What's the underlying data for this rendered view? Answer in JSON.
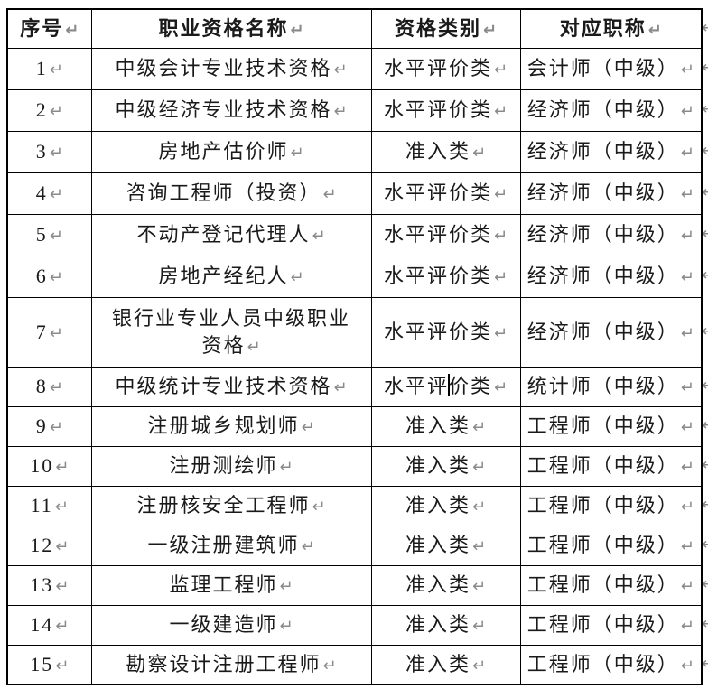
{
  "document": {
    "background_color": "#ffffff",
    "text_color": "#1a1a1a",
    "border_color": "#000000",
    "formatting_mark_color": "#8a8a8a",
    "end_of_cell_mark": "↵",
    "end_of_row_mark": "↵"
  },
  "table": {
    "headers": [
      {
        "key": "no",
        "label": "序号"
      },
      {
        "key": "name",
        "label": "职业资格名称"
      },
      {
        "key": "category",
        "label": "资格类别"
      },
      {
        "key": "title",
        "label": "对应职称"
      }
    ],
    "rows": [
      {
        "no": "1",
        "name": "中级会计专业技术资格",
        "category": "水平评价类",
        "title": "会计师（中级）"
      },
      {
        "no": "2",
        "name": "中级经济专业技术资格",
        "category": "水平评价类",
        "title": "经济师（中级）"
      },
      {
        "no": "3",
        "name": "房地产估价师",
        "category": "准入类",
        "title": "经济师（中级）"
      },
      {
        "no": "4",
        "name": "咨询工程师（投资）",
        "category": "水平评价类",
        "title": "经济师（中级）"
      },
      {
        "no": "5",
        "name": "不动产登记代理人",
        "category": "水平评价类",
        "title": "经济师（中级）"
      },
      {
        "no": "6",
        "name": "房地产经纪人",
        "category": "水平评价类",
        "title": "经济师（中级）"
      },
      {
        "no": "7",
        "name": "银行业专业人员中级职业资格",
        "category": "水平评价类",
        "title": "经济师（中级）",
        "name_wrap_after": 11
      },
      {
        "no": "8",
        "name": "中级统计专业技术资格",
        "category": "水平评价类",
        "title": "统计师（中级）"
      },
      {
        "no": "9",
        "name": "注册城乡规划师",
        "category": "准入类",
        "title": "工程师（中级）"
      },
      {
        "no": "10",
        "name": "注册测绘师",
        "category": "准入类",
        "title": "工程师（中级）"
      },
      {
        "no": "11",
        "name": "注册核安全工程师",
        "category": "准入类",
        "title": "工程师（中级）"
      },
      {
        "no": "12",
        "name": "一级注册建筑师",
        "category": "准入类",
        "title": "工程师（中级）"
      },
      {
        "no": "13",
        "name": "监理工程师",
        "category": "准入类",
        "title": "工程师（中级）"
      },
      {
        "no": "14",
        "name": "一级建造师",
        "category": "准入类",
        "title": "工程师（中级）"
      },
      {
        "no": "15",
        "name": "勘察设计注册工程师",
        "category": "准入类",
        "title": "工程师（中级）"
      }
    ],
    "text_cursor": {
      "row": "8",
      "column": "category",
      "after_chars": 3
    }
  }
}
